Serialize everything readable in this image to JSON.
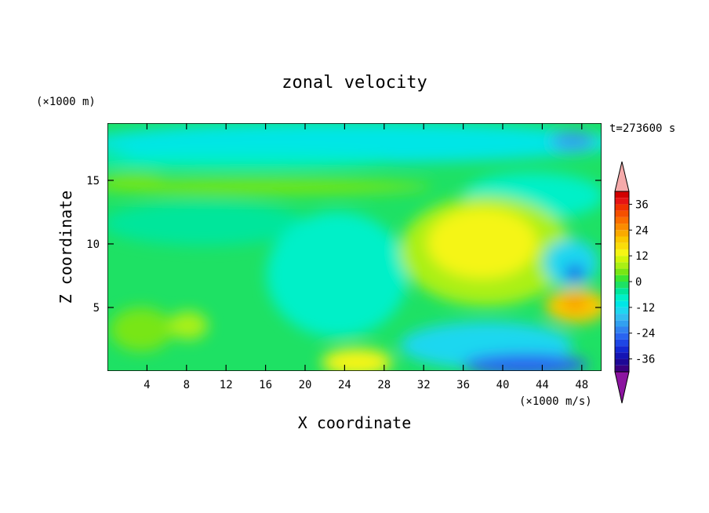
{
  "chart_data": {
    "type": "heatmap",
    "title": "zonal velocity",
    "xlabel": "X coordinate",
    "ylabel": "Z coordinate",
    "x_unit": "(×1000 m/s)",
    "y_unit": "(×1000 m)",
    "time_label": "t=273600 s",
    "xlim": [
      0,
      50
    ],
    "ylim": [
      0,
      19.5
    ],
    "x_ticks": [
      4,
      8,
      12,
      16,
      20,
      24,
      28,
      32,
      36,
      40,
      44,
      48
    ],
    "y_ticks": [
      5,
      10,
      15
    ],
    "colorbar": {
      "levels": [
        -42,
        -39,
        -36,
        -33,
        -30,
        -27,
        -24,
        -21,
        -18,
        -15,
        -12,
        -9,
        -6,
        -3,
        0,
        3,
        6,
        9,
        12,
        15,
        18,
        21,
        24,
        27,
        30,
        33,
        36,
        39,
        42
      ],
      "tick_labels": [
        "36",
        "24",
        "12",
        "0",
        "-12",
        "-24",
        "-36"
      ],
      "tick_values": [
        36,
        24,
        12,
        0,
        -12,
        -24,
        -36
      ],
      "colors": [
        "#3a0080",
        "#1e0896",
        "#1414b4",
        "#1428d2",
        "#1e46e6",
        "#2a64f0",
        "#3282f0",
        "#32a0f0",
        "#32bef0",
        "#1ed7f0",
        "#00e6e6",
        "#00f0c8",
        "#00e69b",
        "#1ee164",
        "#3ce632",
        "#78e614",
        "#aaf014",
        "#d2f50a",
        "#f5f514",
        "#fadc0a",
        "#fac800",
        "#faaa00",
        "#fa8c00",
        "#fa6e00",
        "#f55000",
        "#f03200",
        "#e61414",
        "#d20000"
      ],
      "min_extend_color": "#8c14a0",
      "max_extend_color": "#f5aaaa"
    }
  }
}
